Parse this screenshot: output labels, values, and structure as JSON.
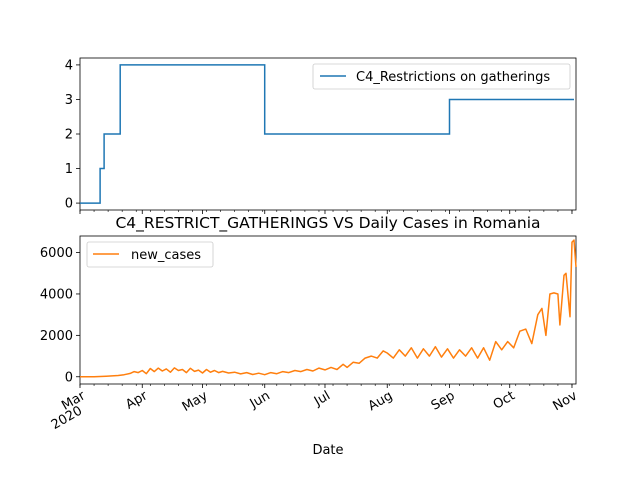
{
  "chart_data": [
    {
      "type": "line",
      "title": "",
      "xlabel": "",
      "ylabel": "",
      "ylim": [
        -0.2,
        4.2
      ],
      "yticks": [
        0,
        1,
        2,
        3,
        4
      ],
      "legend": {
        "placement": "top-right",
        "entries": [
          "C4_Restrictions on gatherings"
        ]
      },
      "series": [
        {
          "name": "C4_Restrictions on gatherings",
          "color": "#1f77b4",
          "step": true,
          "points": [
            [
              "2020-03-01",
              0
            ],
            [
              "2020-03-11",
              1
            ],
            [
              "2020-03-13",
              2
            ],
            [
              "2020-03-21",
              4
            ],
            [
              "2020-06-01",
              2
            ],
            [
              "2020-09-01",
              3
            ],
            [
              "2020-11-02",
              3
            ]
          ]
        }
      ]
    },
    {
      "type": "line",
      "title": "C4_RESTRICT_GATHERINGS VS Daily Cases in Romania",
      "xlabel": "Date",
      "ylabel": "",
      "ylim": [
        -350,
        6800
      ],
      "yticks": [
        0,
        2000,
        4000,
        6000
      ],
      "legend": {
        "placement": "top-left",
        "entries": [
          "new_cases"
        ]
      },
      "series": [
        {
          "name": "new_cases",
          "color": "#ff7f0e",
          "points": [
            [
              "2020-03-01",
              0
            ],
            [
              "2020-03-05",
              2
            ],
            [
              "2020-03-08",
              4
            ],
            [
              "2020-03-11",
              10
            ],
            [
              "2020-03-14",
              25
            ],
            [
              "2020-03-17",
              40
            ],
            [
              "2020-03-20",
              60
            ],
            [
              "2020-03-23",
              100
            ],
            [
              "2020-03-26",
              160
            ],
            [
              "2020-03-28",
              250
            ],
            [
              "2020-03-30",
              200
            ],
            [
              "2020-04-01",
              300
            ],
            [
              "2020-04-03",
              150
            ],
            [
              "2020-04-05",
              400
            ],
            [
              "2020-04-07",
              250
            ],
            [
              "2020-04-09",
              420
            ],
            [
              "2020-04-11",
              280
            ],
            [
              "2020-04-13",
              380
            ],
            [
              "2020-04-15",
              220
            ],
            [
              "2020-04-17",
              430
            ],
            [
              "2020-04-19",
              300
            ],
            [
              "2020-04-21",
              350
            ],
            [
              "2020-04-23",
              200
            ],
            [
              "2020-04-25",
              410
            ],
            [
              "2020-04-27",
              260
            ],
            [
              "2020-04-29",
              320
            ],
            [
              "2020-05-01",
              180
            ],
            [
              "2020-05-03",
              350
            ],
            [
              "2020-05-05",
              220
            ],
            [
              "2020-05-07",
              300
            ],
            [
              "2020-05-09",
              200
            ],
            [
              "2020-05-11",
              260
            ],
            [
              "2020-05-14",
              180
            ],
            [
              "2020-05-17",
              220
            ],
            [
              "2020-05-20",
              140
            ],
            [
              "2020-05-23",
              200
            ],
            [
              "2020-05-26",
              110
            ],
            [
              "2020-05-29",
              170
            ],
            [
              "2020-06-01",
              100
            ],
            [
              "2020-06-04",
              200
            ],
            [
              "2020-06-07",
              150
            ],
            [
              "2020-06-10",
              250
            ],
            [
              "2020-06-13",
              200
            ],
            [
              "2020-06-16",
              300
            ],
            [
              "2020-06-19",
              250
            ],
            [
              "2020-06-22",
              350
            ],
            [
              "2020-06-25",
              280
            ],
            [
              "2020-06-28",
              420
            ],
            [
              "2020-07-01",
              330
            ],
            [
              "2020-07-04",
              450
            ],
            [
              "2020-07-07",
              350
            ],
            [
              "2020-07-10",
              600
            ],
            [
              "2020-07-12",
              450
            ],
            [
              "2020-07-15",
              700
            ],
            [
              "2020-07-18",
              650
            ],
            [
              "2020-07-21",
              900
            ],
            [
              "2020-07-24",
              1000
            ],
            [
              "2020-07-27",
              900
            ],
            [
              "2020-07-30",
              1250
            ],
            [
              "2020-08-01",
              1150
            ],
            [
              "2020-08-04",
              900
            ],
            [
              "2020-08-07",
              1300
            ],
            [
              "2020-08-10",
              1000
            ],
            [
              "2020-08-13",
              1400
            ],
            [
              "2020-08-16",
              900
            ],
            [
              "2020-08-19",
              1350
            ],
            [
              "2020-08-22",
              1000
            ],
            [
              "2020-08-25",
              1450
            ],
            [
              "2020-08-28",
              950
            ],
            [
              "2020-08-31",
              1350
            ],
            [
              "2020-09-03",
              900
            ],
            [
              "2020-09-06",
              1300
            ],
            [
              "2020-09-09",
              1000
            ],
            [
              "2020-09-12",
              1400
            ],
            [
              "2020-09-15",
              900
            ],
            [
              "2020-09-18",
              1400
            ],
            [
              "2020-09-21",
              800
            ],
            [
              "2020-09-24",
              1700
            ],
            [
              "2020-09-27",
              1300
            ],
            [
              "2020-09-30",
              1700
            ],
            [
              "2020-10-03",
              1400
            ],
            [
              "2020-10-06",
              2200
            ],
            [
              "2020-10-09",
              2300
            ],
            [
              "2020-10-12",
              1600
            ],
            [
              "2020-10-15",
              3000
            ],
            [
              "2020-10-17",
              3300
            ],
            [
              "2020-10-19",
              2000
            ],
            [
              "2020-10-21",
              4000
            ],
            [
              "2020-10-23",
              4050
            ],
            [
              "2020-10-25",
              4000
            ],
            [
              "2020-10-26",
              2500
            ],
            [
              "2020-10-28",
              4900
            ],
            [
              "2020-10-29",
              5000
            ],
            [
              "2020-10-31",
              2900
            ],
            [
              "2020-11-01",
              6500
            ],
            [
              "2020-11-02",
              6600
            ],
            [
              "2020-11-03",
              5300
            ]
          ]
        }
      ]
    }
  ],
  "x_axis": {
    "range": [
      "2020-03-01",
      "2020-11-03"
    ],
    "month_ticks": [
      {
        "date": "2020-03-01",
        "label": "Mar",
        "sub": "2020"
      },
      {
        "date": "2020-04-01",
        "label": "Apr",
        "sub": ""
      },
      {
        "date": "2020-05-01",
        "label": "May",
        "sub": ""
      },
      {
        "date": "2020-06-01",
        "label": "Jun",
        "sub": ""
      },
      {
        "date": "2020-07-01",
        "label": "Jul",
        "sub": ""
      },
      {
        "date": "2020-08-01",
        "label": "Aug",
        "sub": ""
      },
      {
        "date": "2020-09-01",
        "label": "Sep",
        "sub": ""
      },
      {
        "date": "2020-10-01",
        "label": "Oct",
        "sub": ""
      },
      {
        "date": "2020-11-01",
        "label": "Nov",
        "sub": ""
      }
    ]
  }
}
